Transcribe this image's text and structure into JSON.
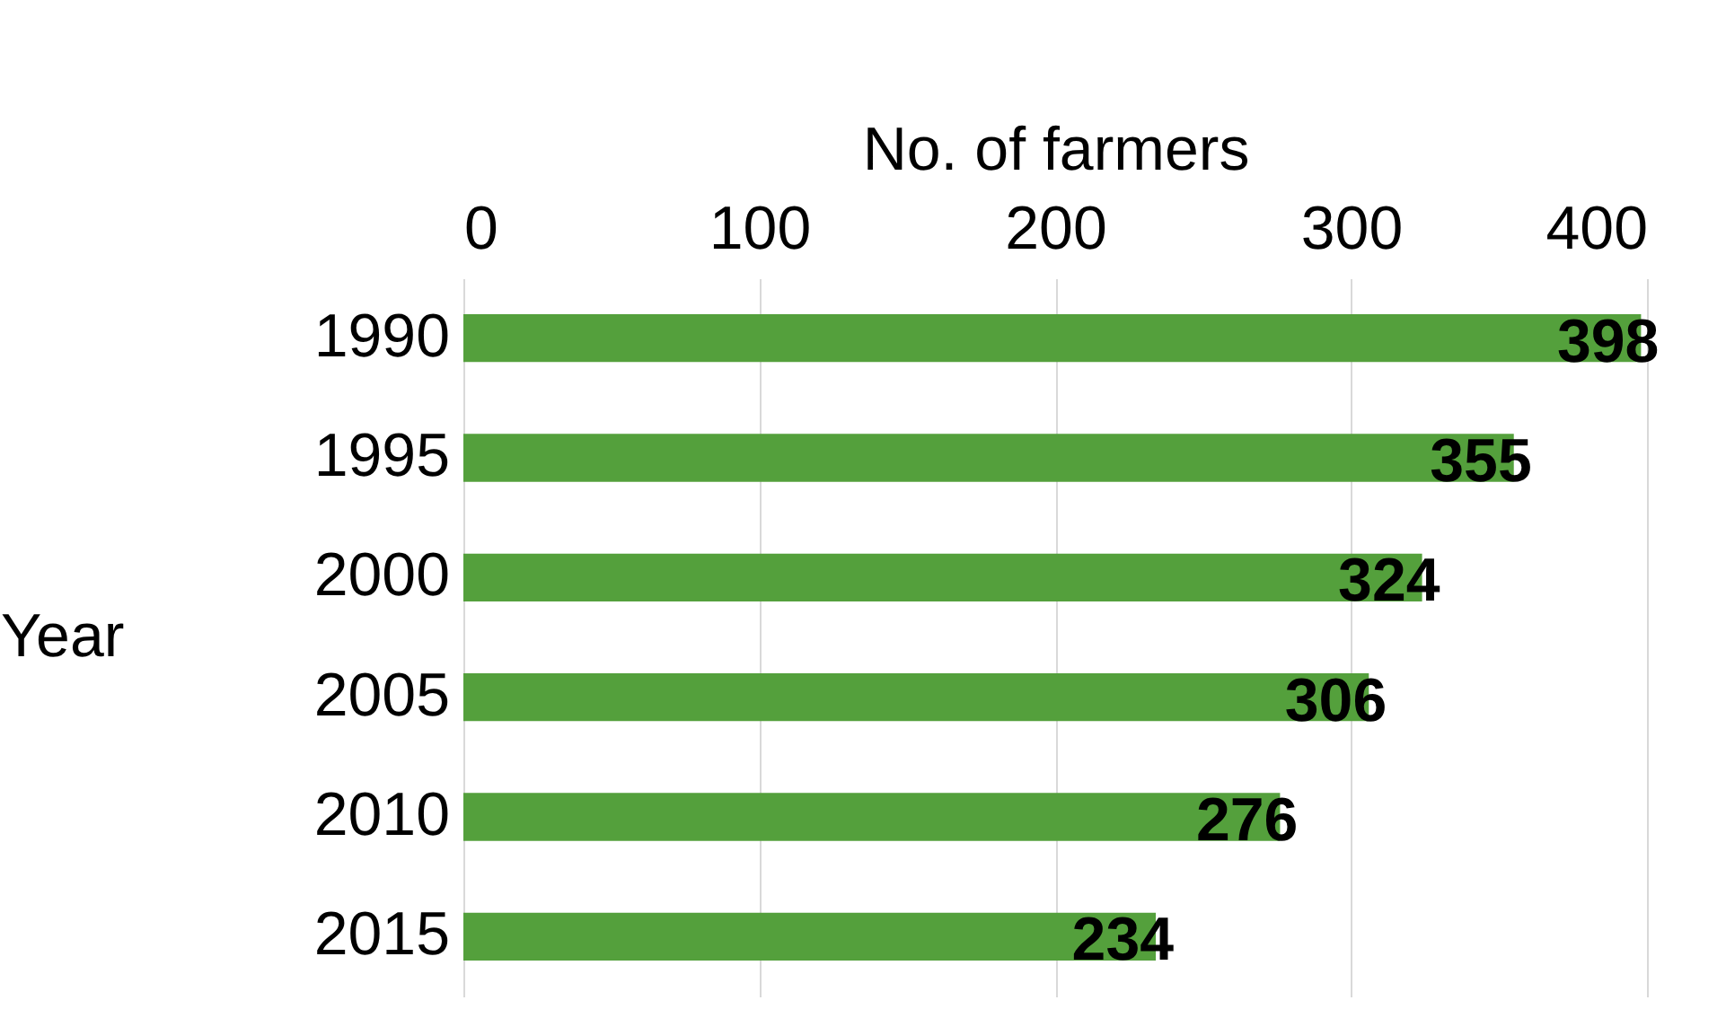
{
  "chart_data": {
    "type": "bar",
    "orientation": "horizontal",
    "xlabel": "No. of farmers",
    "ylabel": "Year",
    "categories": [
      "1990",
      "1995",
      "2000",
      "2005",
      "2010",
      "2015"
    ],
    "values": [
      398,
      355,
      324,
      306,
      276,
      234
    ],
    "color": "#54a03c",
    "xlim": [
      0,
      400
    ],
    "xticks": [
      0,
      100,
      200,
      300,
      400
    ],
    "grid": "x",
    "data_labels": true
  }
}
